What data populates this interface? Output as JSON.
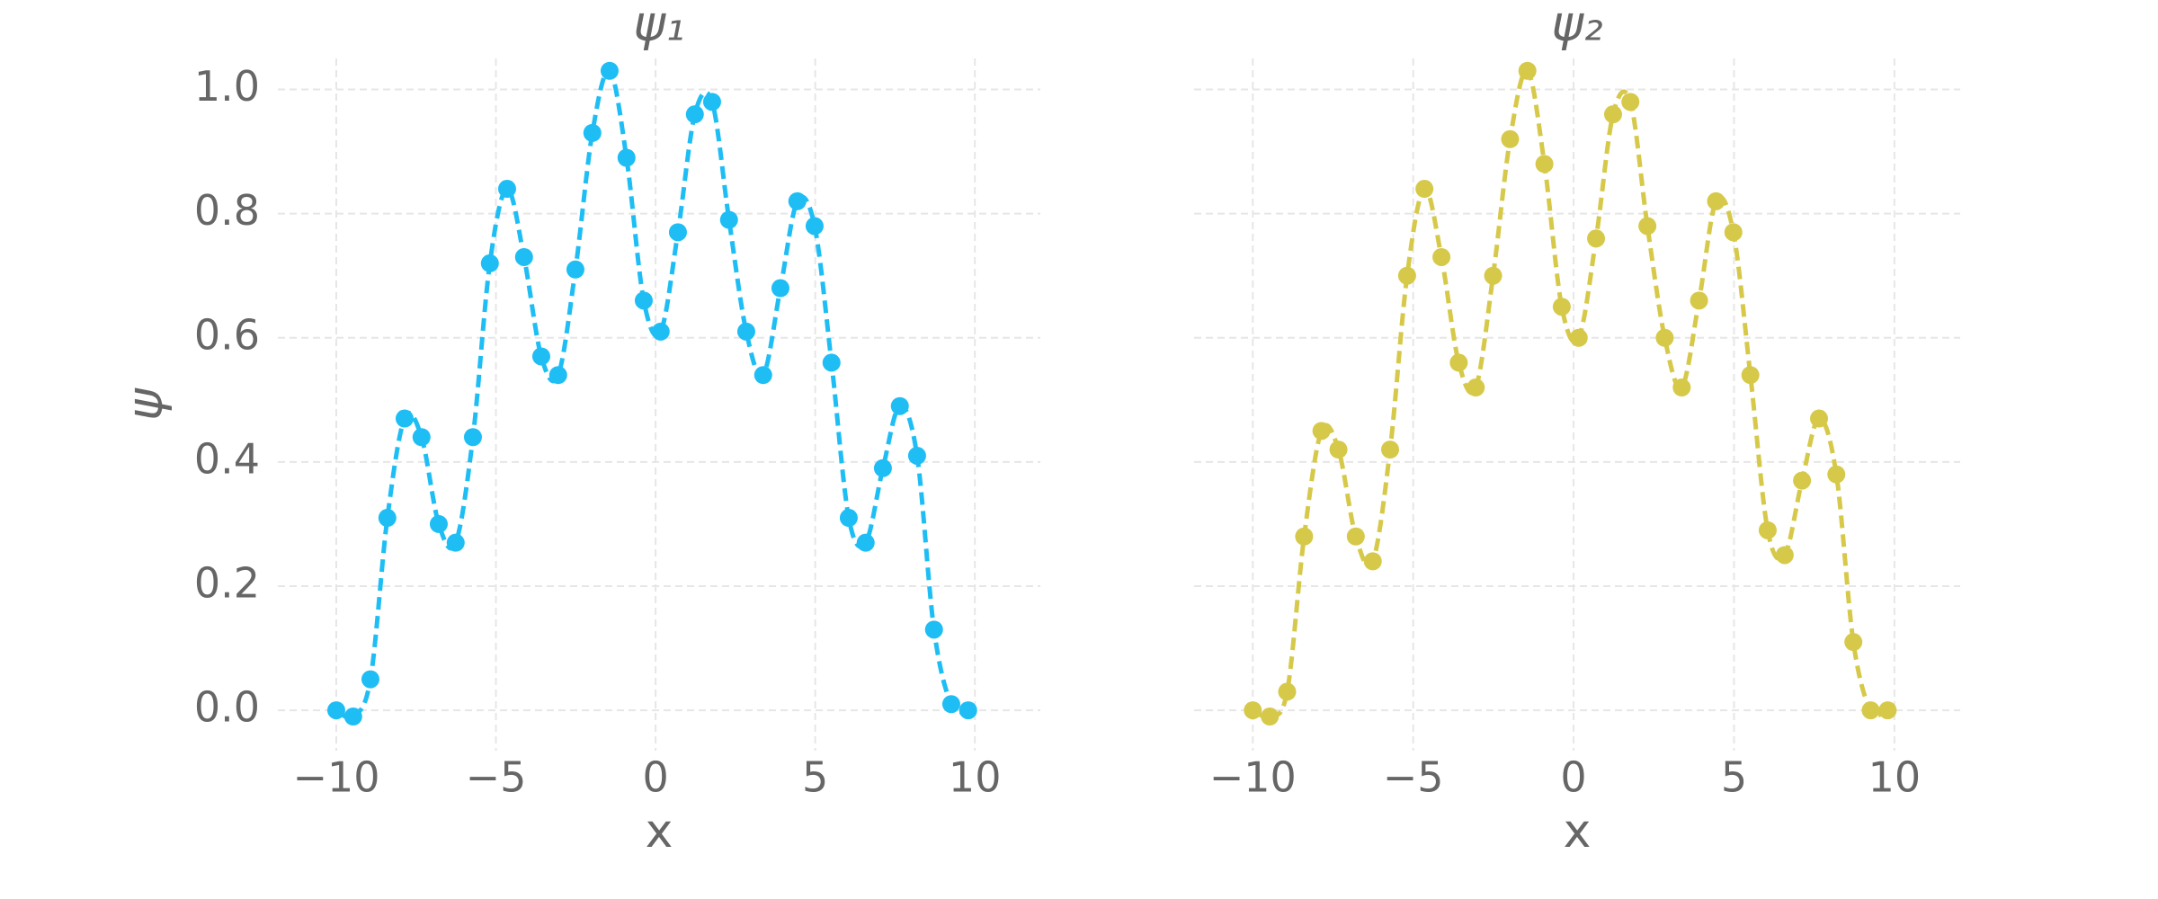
{
  "chart_data": [
    {
      "type": "line",
      "title": "ψ₁",
      "xlabel": "x",
      "ylabel": "ψ",
      "color": "#1ebef5",
      "dashed": true,
      "grid": true,
      "xlim": [
        -11.83,
        12.05
      ],
      "ylim": [
        -0.065,
        1.05
      ],
      "xticks": [
        {
          "value": -10,
          "label": "−10"
        },
        {
          "value": -5,
          "label": "−5"
        },
        0,
        5,
        10
      ],
      "yticks": [
        {
          "value": 0,
          "label": "0.0"
        },
        0.2,
        0.4,
        0.6,
        0.8,
        {
          "value": 1,
          "label": "1.0"
        }
      ],
      "x": [
        -10,
        -9.47,
        -8.93,
        -8.4,
        -7.86,
        -7.33,
        -6.79,
        -6.26,
        -5.72,
        -5.19,
        -4.65,
        -4.12,
        -3.58,
        -3.05,
        -2.51,
        -1.98,
        -1.44,
        -0.91,
        -0.37,
        0.16,
        0.7,
        1.23,
        1.77,
        2.3,
        2.84,
        3.37,
        3.91,
        4.44,
        4.98,
        5.51,
        6.05,
        6.58,
        7.12,
        7.65,
        8.19,
        8.72,
        9.26,
        9.79
      ],
      "values": [
        0.0,
        -0.01,
        0.05,
        0.31,
        0.47,
        0.44,
        0.3,
        0.27,
        0.44,
        0.72,
        0.84,
        0.73,
        0.57,
        0.54,
        0.71,
        0.93,
        1.03,
        0.89,
        0.66,
        0.61,
        0.77,
        0.96,
        0.98,
        0.79,
        0.61,
        0.54,
        0.68,
        0.82,
        0.78,
        0.56,
        0.31,
        0.27,
        0.39,
        0.49,
        0.41,
        0.13,
        0.01,
        0.0
      ]
    },
    {
      "type": "line",
      "title": "ψ₂",
      "xlabel": "x",
      "color": "#d6c94a",
      "dashed": true,
      "grid": true,
      "xlim": [
        -11.83,
        12.05
      ],
      "ylim": [
        -0.065,
        1.05
      ],
      "xticks": [
        {
          "value": -10,
          "label": "−10"
        },
        {
          "value": -5,
          "label": "−5"
        },
        0,
        5,
        10
      ],
      "yticks": [
        0,
        0.2,
        0.4,
        0.6,
        0.8,
        1
      ],
      "x": [
        -10,
        -9.47,
        -8.93,
        -8.4,
        -7.86,
        -7.33,
        -6.79,
        -6.26,
        -5.72,
        -5.19,
        -4.65,
        -4.12,
        -3.58,
        -3.05,
        -2.51,
        -1.98,
        -1.44,
        -0.91,
        -0.37,
        0.16,
        0.7,
        1.23,
        1.77,
        2.3,
        2.84,
        3.37,
        3.91,
        4.44,
        4.98,
        5.51,
        6.05,
        6.58,
        7.12,
        7.65,
        8.19,
        8.72,
        9.26,
        9.79
      ],
      "values": [
        0.0,
        -0.01,
        0.03,
        0.28,
        0.45,
        0.42,
        0.28,
        0.24,
        0.42,
        0.7,
        0.84,
        0.73,
        0.56,
        0.52,
        0.7,
        0.92,
        1.03,
        0.88,
        0.65,
        0.6,
        0.76,
        0.96,
        0.98,
        0.78,
        0.6,
        0.52,
        0.66,
        0.82,
        0.77,
        0.54,
        0.29,
        0.25,
        0.37,
        0.47,
        0.38,
        0.11,
        0.0,
        0.0
      ]
    }
  ]
}
